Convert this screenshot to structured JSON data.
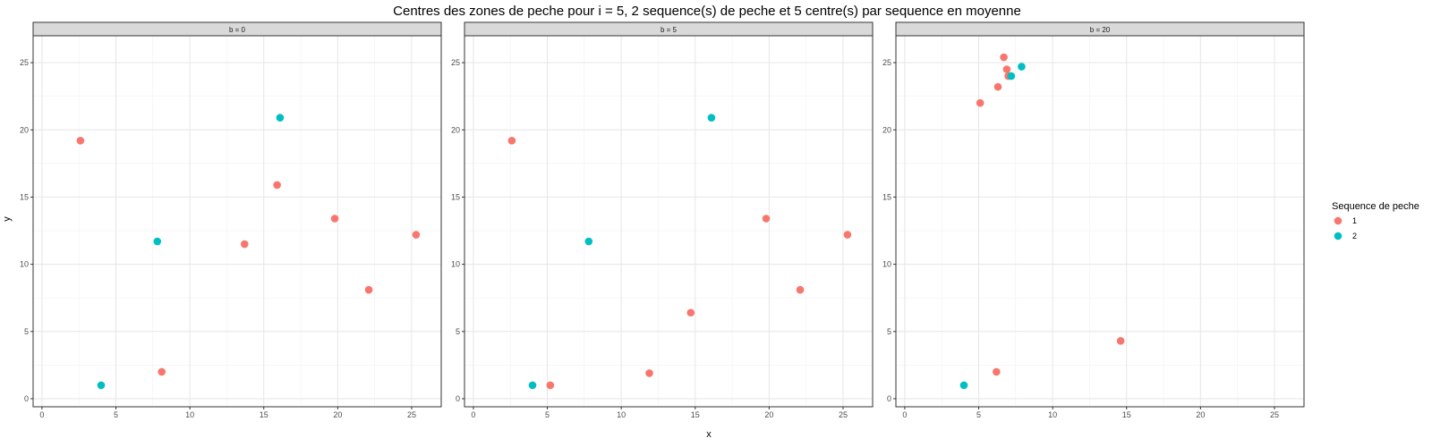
{
  "chart_data": {
    "type": "scatter",
    "title": "Centres des zones de peche pour i = 5, 2 sequence(s) de peche et 5 centre(s) par sequence en moyenne",
    "xlabel": "x",
    "ylabel": "y",
    "xlim": [
      -0.6,
      27
    ],
    "ylim": [
      -0.6,
      27
    ],
    "xticks": [
      0,
      5,
      10,
      15,
      20,
      25
    ],
    "yticks": [
      0,
      5,
      10,
      15,
      20,
      25
    ],
    "grid": true,
    "legend": {
      "title": "Sequence de peche",
      "position": "right",
      "entries": [
        {
          "label": "1",
          "color": "#F8766D"
        },
        {
          "label": "2",
          "color": "#00BFC4"
        }
      ]
    },
    "panels": [
      {
        "label": "b = 0",
        "series": [
          {
            "name": "1",
            "points": [
              [
                2.6,
                19.2
              ],
              [
                8.1,
                2.0
              ],
              [
                13.7,
                11.5
              ],
              [
                15.9,
                15.9
              ],
              [
                19.8,
                13.4
              ],
              [
                22.1,
                8.1
              ],
              [
                25.3,
                12.2
              ]
            ]
          },
          {
            "name": "2",
            "points": [
              [
                4.0,
                1.0
              ],
              [
                7.8,
                11.7
              ],
              [
                16.1,
                20.9
              ]
            ]
          }
        ]
      },
      {
        "label": "b = 5",
        "series": [
          {
            "name": "1",
            "points": [
              [
                2.6,
                19.2
              ],
              [
                5.2,
                1.0
              ],
              [
                11.9,
                1.9
              ],
              [
                14.7,
                6.4
              ],
              [
                19.8,
                13.4
              ],
              [
                22.1,
                8.1
              ],
              [
                25.3,
                12.2
              ]
            ]
          },
          {
            "name": "2",
            "points": [
              [
                4.0,
                1.0
              ],
              [
                7.8,
                11.7
              ],
              [
                16.1,
                20.9
              ]
            ]
          }
        ]
      },
      {
        "label": "b = 20",
        "series": [
          {
            "name": "1",
            "points": [
              [
                5.1,
                22.0
              ],
              [
                6.2,
                2.0
              ],
              [
                6.3,
                23.2
              ],
              [
                6.7,
                25.4
              ],
              [
                6.9,
                24.5
              ],
              [
                7.0,
                24.0
              ],
              [
                14.6,
                4.3
              ]
            ]
          },
          {
            "name": "2",
            "points": [
              [
                4.0,
                1.0
              ],
              [
                7.2,
                24.0
              ],
              [
                7.9,
                24.7
              ]
            ]
          }
        ]
      }
    ]
  }
}
